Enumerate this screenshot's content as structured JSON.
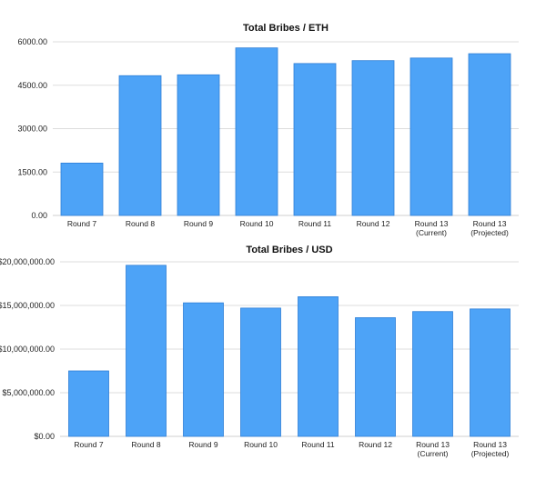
{
  "chart_data": [
    {
      "type": "bar",
      "title": "Total Bribes / ETH",
      "categories": [
        [
          "Round 7"
        ],
        [
          "Round 8"
        ],
        [
          "Round 9"
        ],
        [
          "Round 10"
        ],
        [
          "Round 11"
        ],
        [
          "Round 12"
        ],
        [
          "Round 13",
          "(Current)"
        ],
        [
          "Round 13",
          "(Projected)"
        ]
      ],
      "values": [
        1810,
        4830,
        4860,
        5790,
        5250,
        5350,
        5440,
        5590
      ],
      "yticks": [
        0,
        1500,
        3000,
        4500,
        6000
      ],
      "ytick_labels": [
        "0.00",
        "1500.00",
        "3000.00",
        "4500.00",
        "6000.00"
      ],
      "ylim": [
        0,
        6000
      ],
      "xlabel": "",
      "ylabel": "",
      "bar_color": "#4da3f7",
      "grid": true
    },
    {
      "type": "bar",
      "title": "Total Bribes / USD",
      "categories": [
        [
          "Round 7"
        ],
        [
          "Round 8"
        ],
        [
          "Round 9"
        ],
        [
          "Round 10"
        ],
        [
          "Round 11"
        ],
        [
          "Round 12"
        ],
        [
          "Round 13",
          "(Current)"
        ],
        [
          "Round 13",
          "(Projected)"
        ]
      ],
      "values": [
        7500000,
        19600000,
        15300000,
        14700000,
        16000000,
        13600000,
        14300000,
        14600000
      ],
      "yticks": [
        0,
        5000000,
        10000000,
        15000000,
        20000000
      ],
      "ytick_labels": [
        "$0.00",
        "$5,000,000.00",
        "$10,000,000.00",
        "$15,000,000.00",
        "$20,000,000.00"
      ],
      "ylim": [
        0,
        20000000
      ],
      "xlabel": "",
      "ylabel": "",
      "bar_color": "#4da3f7",
      "grid": true
    }
  ]
}
